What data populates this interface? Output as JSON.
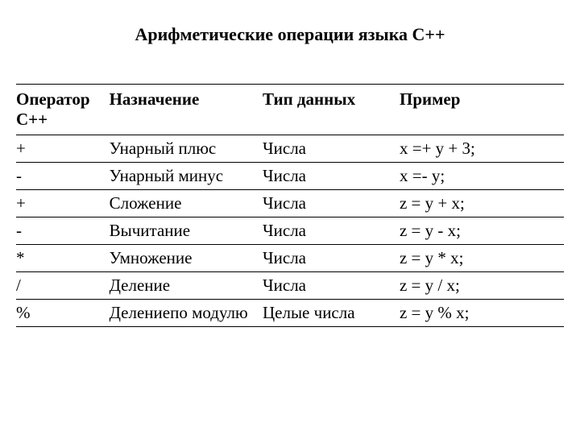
{
  "title": "Арифметические операции языка С++",
  "table": {
    "columns": [
      "Оператор С++",
      "Назначение",
      "Тип данных",
      "Пример"
    ],
    "col_widths_pct": [
      17,
      28,
      25,
      30
    ],
    "rows": [
      [
        "+",
        "Унарный плюс",
        "Числа",
        "x =+ y + 3;"
      ],
      [
        "-",
        "Унарный минус",
        "Числа",
        "x =- y;"
      ],
      [
        "+",
        "Сложение",
        "Числа",
        "z = y + x;"
      ],
      [
        "-",
        "Вычитание",
        "Числа",
        "z = y - x;"
      ],
      [
        "*",
        "Умножение",
        "Числа",
        "z = y * x;"
      ],
      [
        "/",
        "Деление",
        "Числа",
        "z = y / x;"
      ],
      [
        "%",
        "Делениепо модулю",
        "Целые числа",
        "z = y % x;"
      ]
    ],
    "font_family": "Times New Roman",
    "title_fontsize_pt": 22,
    "cell_fontsize_pt": 21,
    "border_color": "#000000",
    "background_color": "#ffffff",
    "text_color": "#000000"
  }
}
